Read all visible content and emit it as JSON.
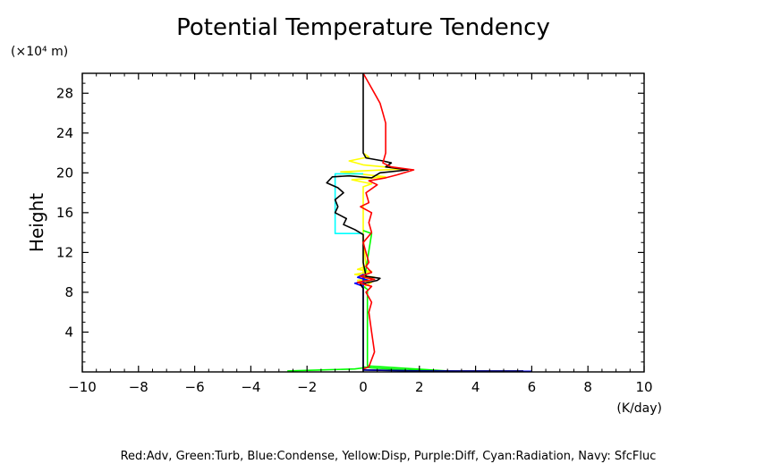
{
  "chart_data": {
    "type": "line",
    "title": "Potential Temperature Tendency",
    "ylabel": "Height",
    "yunit_label": "(×10⁴ m)",
    "xunit_label": "(K/day)",
    "xlim": [
      -10,
      10
    ],
    "ylim": [
      0,
      30
    ],
    "xticks": [
      -10,
      -8,
      -6,
      -4,
      -2,
      0,
      2,
      4,
      6,
      8,
      10
    ],
    "xtick_labels": [
      "−10",
      "−8",
      "−6",
      "−4",
      "−2",
      "0",
      "2",
      "4",
      "6",
      "8",
      "10"
    ],
    "yticks": [
      4,
      8,
      12,
      16,
      20,
      24,
      28
    ],
    "ytick_labels": [
      "4",
      "8",
      "12",
      "16",
      "20",
      "24",
      "28"
    ],
    "grid": false,
    "legend_text": "Red:Adv, Green:Turb, Blue:Condense, Yellow:Disp, Purple:Diff, Cyan:Radiation, Navy: SfcFluc",
    "series": [
      {
        "color": "#ffff00",
        "points": [
          [
            0,
            13.5
          ],
          [
            0.1,
            10.6
          ],
          [
            -0.2,
            10.3
          ],
          [
            0.3,
            10.1
          ],
          [
            -0.3,
            9.8
          ],
          [
            0.4,
            9.5
          ],
          [
            -0.2,
            9.2
          ],
          [
            0.3,
            9.0
          ],
          [
            0,
            8.5
          ],
          [
            0,
            18.6
          ],
          [
            0.3,
            18.9
          ],
          [
            -0.4,
            19.3
          ],
          [
            0.8,
            19.6
          ],
          [
            -0.8,
            20.1
          ],
          [
            1.5,
            20.4
          ],
          [
            0,
            20.8
          ],
          [
            -0.5,
            21.2
          ],
          [
            0.2,
            21.6
          ],
          [
            0,
            22
          ]
        ]
      },
      {
        "color": "#00ff00",
        "points": [
          [
            -2.7,
            0.1
          ],
          [
            -1.5,
            0.2
          ],
          [
            -0.3,
            0.3
          ],
          [
            0,
            0.4
          ],
          [
            0,
            0.5
          ],
          [
            0.3,
            0.4
          ],
          [
            1.5,
            0.2
          ],
          [
            3,
            0.1
          ],
          [
            0.15,
            0.6
          ],
          [
            0.15,
            8.3
          ],
          [
            0,
            8.6
          ],
          [
            0.3,
            13.9
          ],
          [
            0,
            14.2
          ]
        ]
      },
      {
        "color": "#0000ff",
        "points": [
          [
            0,
            8.6
          ],
          [
            -0.3,
            8.9
          ],
          [
            0.2,
            9.2
          ],
          [
            -0.2,
            9.5
          ],
          [
            0,
            9.8
          ],
          [
            0,
            0.2
          ],
          [
            1.5,
            0.12
          ],
          [
            3,
            0.08
          ],
          [
            6,
            0.06
          ]
        ]
      },
      {
        "color": "#00ffff",
        "points": [
          [
            0,
            13.9
          ],
          [
            -1,
            13.9
          ],
          [
            -1,
            19.9
          ],
          [
            0,
            19.9
          ]
        ]
      },
      {
        "color": "#000000",
        "points": [
          [
            0,
            0
          ],
          [
            0,
            8.4
          ],
          [
            -0.1,
            8.8
          ],
          [
            0.5,
            9.2
          ],
          [
            0.6,
            9.4
          ],
          [
            0.1,
            9.6
          ],
          [
            0,
            11
          ],
          [
            0,
            13.8
          ],
          [
            -0.3,
            14.3
          ],
          [
            -0.7,
            14.8
          ],
          [
            -0.6,
            15.4
          ],
          [
            -1.0,
            16.0
          ],
          [
            -0.9,
            16.6
          ],
          [
            -1.0,
            17.3
          ],
          [
            -0.7,
            18.0
          ],
          [
            -0.9,
            18.5
          ],
          [
            -1.3,
            19.0
          ],
          [
            -1.1,
            19.6
          ],
          [
            -0.5,
            19.7
          ],
          [
            0.3,
            19.5
          ],
          [
            0.6,
            20.0
          ],
          [
            1.6,
            20.3
          ],
          [
            0.8,
            20.6
          ],
          [
            1.0,
            21.0
          ],
          [
            0.7,
            21.2
          ],
          [
            0.1,
            21.5
          ],
          [
            0,
            22
          ],
          [
            0,
            30
          ]
        ]
      },
      {
        "color": "#ff0000",
        "points": [
          [
            0,
            0.3
          ],
          [
            0.2,
            0.5
          ],
          [
            0.4,
            2
          ],
          [
            0.3,
            4
          ],
          [
            0.2,
            6
          ],
          [
            0.3,
            7
          ],
          [
            0.1,
            8
          ],
          [
            0.3,
            8.6
          ],
          [
            -0.2,
            9.0
          ],
          [
            0.4,
            9.3
          ],
          [
            -0.1,
            9.6
          ],
          [
            0.3,
            10
          ],
          [
            0.1,
            10.6
          ],
          [
            0.2,
            11
          ],
          [
            0.1,
            12
          ],
          [
            0,
            13
          ],
          [
            0.3,
            14
          ],
          [
            0.2,
            15
          ],
          [
            0.3,
            16
          ],
          [
            -0.1,
            16.6
          ],
          [
            0.2,
            17
          ],
          [
            0.1,
            18
          ],
          [
            0.5,
            18.8
          ],
          [
            0.2,
            19.2
          ],
          [
            0.8,
            19.5
          ],
          [
            1.2,
            19.8
          ],
          [
            1.8,
            20.3
          ],
          [
            1.0,
            20.6
          ],
          [
            0.7,
            21
          ],
          [
            0.8,
            22
          ],
          [
            0.8,
            23.5
          ],
          [
            0.8,
            25
          ],
          [
            0.7,
            26
          ],
          [
            0.6,
            27
          ],
          [
            0.4,
            28
          ],
          [
            0.2,
            29
          ],
          [
            0,
            30
          ]
        ]
      },
      {
        "color": "#000080",
        "points": [
          [
            0,
            0.2
          ],
          [
            2,
            0.1
          ],
          [
            5.7,
            0.1
          ]
        ]
      }
    ]
  }
}
